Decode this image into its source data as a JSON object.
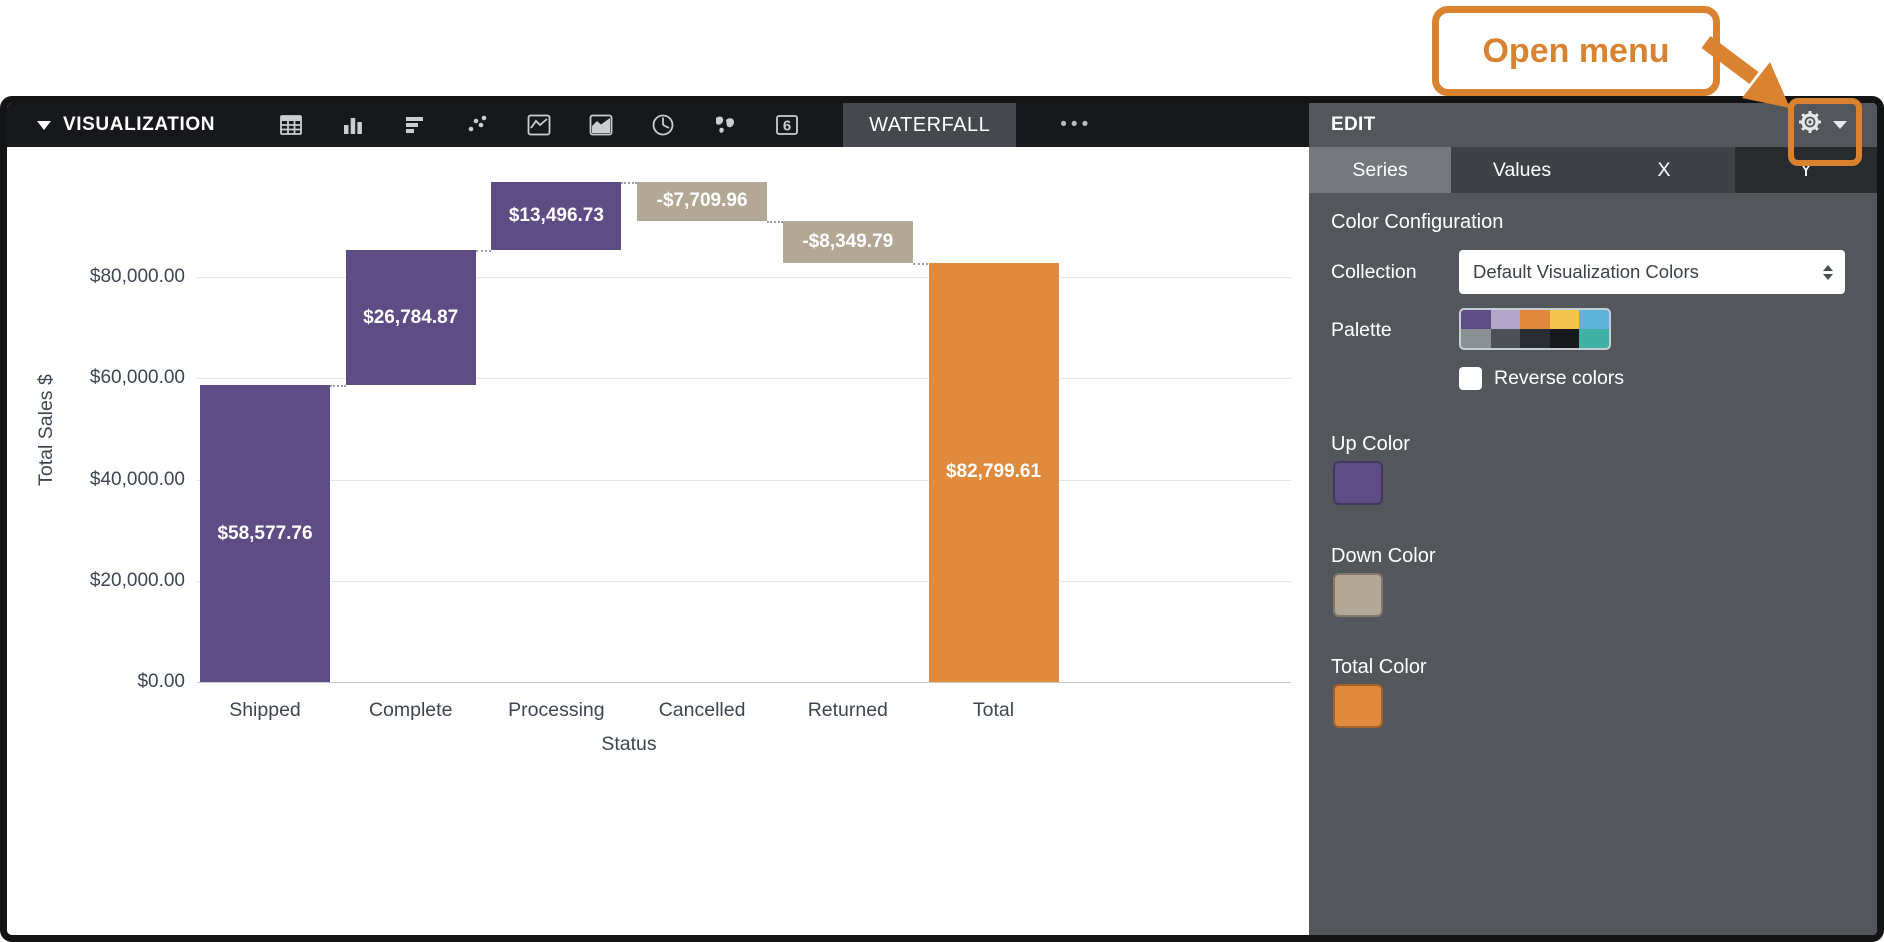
{
  "annotation": {
    "label": "Open menu",
    "accent_color": "#d9822f"
  },
  "toolbar": {
    "title": "VISUALIZATION",
    "active_type": "WATERFALL",
    "more_label": "•••",
    "chart_type_icons": [
      "table-chart-icon",
      "column-chart-icon",
      "bar-chart-icon",
      "scatter-chart-icon",
      "line-chart-icon",
      "area-chart-icon",
      "pie-chart-icon",
      "map-chart-icon",
      "single-value-icon"
    ]
  },
  "panel": {
    "header": "EDIT",
    "tabs": [
      {
        "label": "Series",
        "active": true
      },
      {
        "label": "Values",
        "active": false
      },
      {
        "label": "X",
        "active": false
      },
      {
        "label": "Y",
        "active": false
      }
    ],
    "color_config_title": "Color Configuration",
    "collection_label": "Collection",
    "collection_value": "Default Visualization Colors",
    "palette_label": "Palette",
    "palette_colors": [
      "#5e4d85",
      "#b1a6c7",
      "#e0883c",
      "#f3c44d",
      "#5db3d9",
      "#8b9097",
      "#4d5157",
      "#2a2d31",
      "#17191c",
      "#41b0a5"
    ],
    "reverse_label": "Reverse colors",
    "up_color_label": "Up Color",
    "up_color": "#5e4d85",
    "down_color_label": "Down Color",
    "down_color": "#b3a795",
    "total_color_label": "Total Color",
    "total_color": "#e08a3e"
  },
  "chart_data": {
    "type": "waterfall",
    "title": "",
    "xlabel": "Status",
    "ylabel": "Total Sales $",
    "categories": [
      "Shipped",
      "Complete",
      "Processing",
      "Cancelled",
      "Returned",
      "Total"
    ],
    "values": [
      58577.76,
      26784.87,
      13496.73,
      -7709.96,
      -8349.79,
      82799.61
    ],
    "bar_labels": [
      "$58,577.76",
      "$26,784.87",
      "$13,496.73",
      "-$7,709.96",
      "-$8,349.79",
      "$82,799.61"
    ],
    "kinds": [
      "up",
      "up",
      "up",
      "down",
      "down",
      "total"
    ],
    "y_ticks": [
      {
        "label": "$0.00",
        "value": 0
      },
      {
        "label": "$20,000.00",
        "value": 20000
      },
      {
        "label": "$40,000.00",
        "value": 40000
      },
      {
        "label": "$60,000.00",
        "value": 60000
      },
      {
        "label": "$80,000.00",
        "value": 80000
      }
    ],
    "ylim": [
      0,
      105000
    ],
    "grid": true,
    "legend": "none",
    "colors": {
      "up": "#5e4d85",
      "down": "#b3a795",
      "total": "#e08a3e"
    }
  }
}
